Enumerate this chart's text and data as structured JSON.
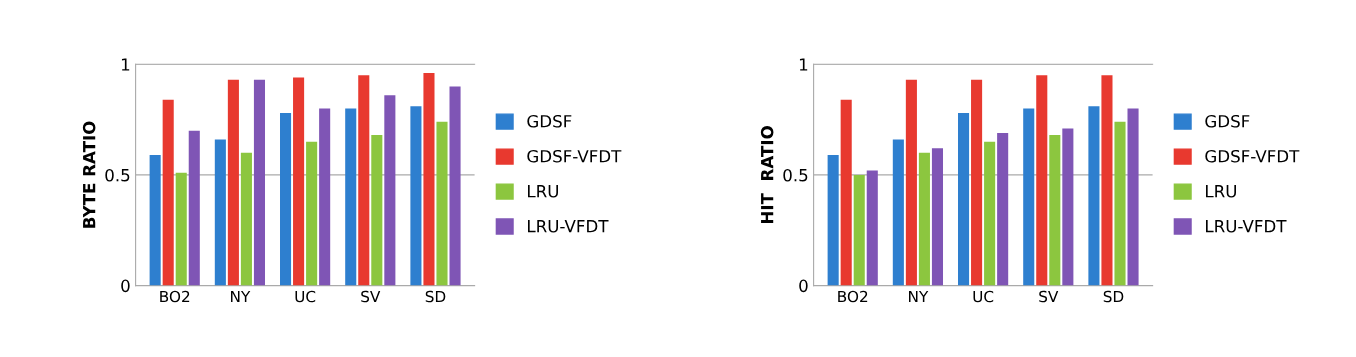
{
  "chart_data": [
    {
      "type": "bar",
      "ylabel": "BYTE RATIO",
      "categories": [
        "BO2",
        "NY",
        "UC",
        "SV",
        "SD"
      ],
      "ylim": [
        0,
        1
      ],
      "yticks": [
        0,
        0.5,
        1
      ],
      "grid": "y",
      "legend": "right",
      "series": [
        {
          "name": "GDSF",
          "color": "#2e7fcf",
          "values": [
            0.59,
            0.66,
            0.78,
            0.8,
            0.81
          ]
        },
        {
          "name": "GDSF-VFDT",
          "color": "#e8392f",
          "values": [
            0.84,
            0.93,
            0.94,
            0.95,
            0.96
          ]
        },
        {
          "name": "LRU",
          "color": "#8cc63f",
          "values": [
            0.51,
            0.6,
            0.65,
            0.68,
            0.74
          ]
        },
        {
          "name": "LRU-VFDT",
          "color": "#7f55b5",
          "values": [
            0.7,
            0.93,
            0.8,
            0.86,
            0.9
          ]
        }
      ]
    },
    {
      "type": "bar",
      "ylabel": "HIT  RATIO",
      "categories": [
        "BO2",
        "NY",
        "UC",
        "SV",
        "SD"
      ],
      "ylim": [
        0,
        1
      ],
      "yticks": [
        0,
        0.5,
        1
      ],
      "grid": "y",
      "legend": "right",
      "series": [
        {
          "name": "GDSF",
          "color": "#2e7fcf",
          "values": [
            0.59,
            0.66,
            0.78,
            0.8,
            0.81
          ]
        },
        {
          "name": "GDSF-VFDT",
          "color": "#e8392f",
          "values": [
            0.84,
            0.93,
            0.93,
            0.95,
            0.95
          ]
        },
        {
          "name": "LRU",
          "color": "#8cc63f",
          "values": [
            0.5,
            0.6,
            0.65,
            0.68,
            0.74
          ]
        },
        {
          "name": "LRU-VFDT",
          "color": "#7f55b5",
          "values": [
            0.52,
            0.62,
            0.69,
            0.71,
            0.8
          ]
        }
      ]
    }
  ]
}
